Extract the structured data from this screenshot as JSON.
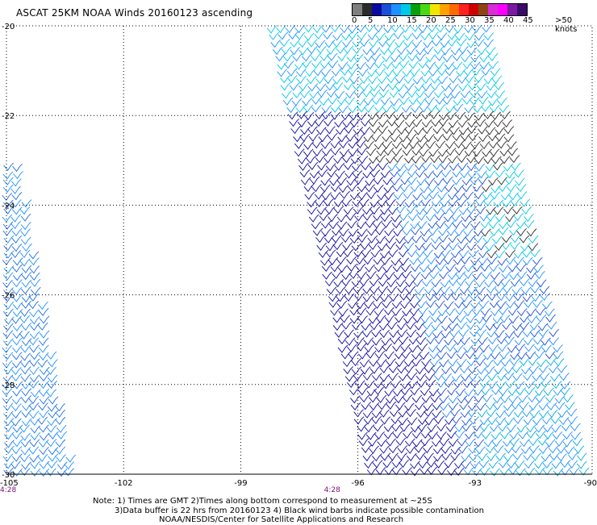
{
  "header": {
    "title": "ASCAT 25KM NOAA Winds 20160123 ascending"
  },
  "legend": {
    "colors": [
      "#7f7f7f",
      "#2b2b2b",
      "#0a0aa0",
      "#1c4fd8",
      "#1e90ff",
      "#00c8e8",
      "#0a9e0a",
      "#48d818",
      "#f0e600",
      "#ffa200",
      "#ff6a00",
      "#ff2020",
      "#d00000",
      "#8b4513",
      "#d82cd8",
      "#ff00ff",
      "#7a1aa0",
      "#3a0a6a"
    ],
    "tick_labels": [
      "0",
      "5",
      "10",
      "15",
      "20",
      "25",
      "30",
      "35",
      "40",
      "45",
      ">50 knots"
    ]
  },
  "map": {
    "lon_labels": [
      "-105",
      "-102",
      "-99",
      "-96",
      "-93",
      "-90"
    ],
    "lat_labels": [
      "-20",
      "-22",
      "-24",
      "-26",
      "-28",
      "-30"
    ],
    "time_labels": [
      {
        "text": "4:28",
        "lon": -105
      },
      {
        "text": "4:28",
        "lon": -96
      }
    ]
  },
  "notes": {
    "line1": "Note: 1) Times are GMT 2)Times along bottom correspond to measurement at ~25S",
    "line2": "3)Data buffer is 22 hrs from 20160123 4) Black wind barbs indicate possible contamination",
    "line3": "NOAA/NESDIS/Center for Satellite Applications and Research"
  }
}
